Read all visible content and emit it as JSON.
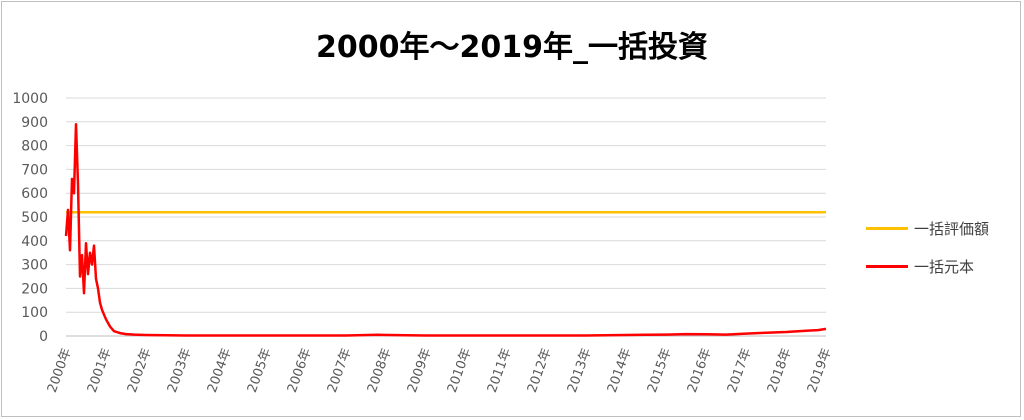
{
  "chart_data": {
    "type": "line",
    "title": "2000年～2019年_一括投資",
    "xlabel": "",
    "ylabel": "",
    "ylim": [
      0,
      1000
    ],
    "y_ticks": [
      0,
      100,
      200,
      300,
      400,
      500,
      600,
      700,
      800,
      900,
      1000
    ],
    "x_ticks": [
      "2000年",
      "2001年",
      "2002年",
      "2003年",
      "2004年",
      "2005年",
      "2006年",
      "2007年",
      "2008年",
      "2009年",
      "2010年",
      "2011年",
      "2012年",
      "2013年",
      "2014年",
      "2015年",
      "2016年",
      "2017年",
      "2018年",
      "2019年"
    ],
    "xlim": [
      2000,
      2019
    ],
    "grid": true,
    "legend_position": "right",
    "series": [
      {
        "name": "一括評価額",
        "color": "#ffc000",
        "x": [
          2000,
          2019
        ],
        "values": [
          520,
          520
        ]
      },
      {
        "name": "一括元本",
        "color": "#ff0000",
        "x": [
          2000.0,
          2000.05,
          2000.1,
          2000.15,
          2000.2,
          2000.25,
          2000.3,
          2000.35,
          2000.4,
          2000.45,
          2000.5,
          2000.55,
          2000.6,
          2000.65,
          2000.7,
          2000.75,
          2000.8,
          2000.85,
          2000.9,
          2001.0,
          2001.1,
          2001.2,
          2001.35,
          2001.5,
          2001.7,
          2002.0,
          2002.5,
          2003.0,
          2004.0,
          2005.0,
          2006.0,
          2007.0,
          2007.8,
          2008.5,
          2009.0,
          2010.0,
          2011.0,
          2012.0,
          2013.0,
          2014.0,
          2014.5,
          2015.0,
          2015.5,
          2016.0,
          2016.5,
          2017.0,
          2017.5,
          2018.0,
          2018.5,
          2018.8,
          2019.0
        ],
        "values": [
          420,
          530,
          360,
          660,
          600,
          890,
          640,
          250,
          340,
          180,
          390,
          260,
          350,
          300,
          380,
          240,
          200,
          140,
          110,
          70,
          40,
          20,
          12,
          8,
          6,
          4,
          3,
          2,
          2,
          2,
          2,
          2,
          5,
          3,
          2,
          2,
          2,
          2,
          2,
          4,
          5,
          6,
          8,
          7,
          6,
          10,
          14,
          17,
          22,
          25,
          30
        ]
      }
    ]
  }
}
